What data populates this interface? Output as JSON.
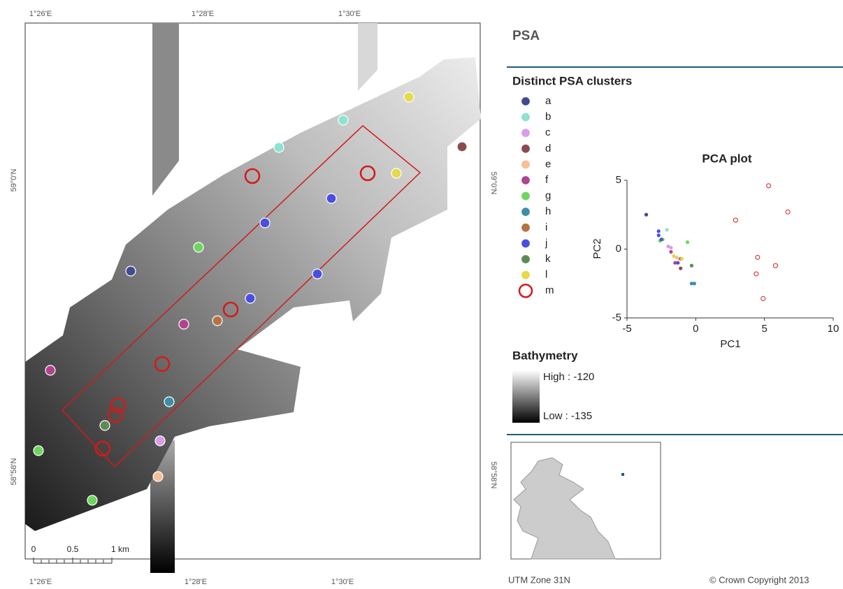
{
  "title": "PSA",
  "map": {
    "lon_labels": [
      "1°26'E",
      "1°28'E",
      "1°30'E"
    ],
    "lat_labels": [
      "59°0'N",
      "58°58'N"
    ],
    "scale_labels": [
      "0",
      "0.5",
      "1 km"
    ]
  },
  "legend": {
    "title": "Distinct PSA clusters"
  },
  "bathymetry": {
    "title": "Bathymetry",
    "high": "High : -120",
    "low": "Low : -135"
  },
  "footer": {
    "projection": "UTM Zone 31N",
    "copyright": "© Crown Copyright 2013"
  },
  "chart_data": {
    "type": "scatter",
    "title": "PCA plot",
    "xlabel": "PC1",
    "ylabel": "PC2",
    "xlim": [
      -5,
      10
    ],
    "ylim": [
      -5,
      5
    ],
    "xticks": [
      -5,
      0,
      5,
      10
    ],
    "yticks": [
      -5,
      0,
      5
    ],
    "series": [
      {
        "name": "a",
        "color": "#414b93",
        "x": [
          -3.6
        ],
        "y": [
          2.5
        ]
      },
      {
        "name": "b",
        "color": "#8be3d0",
        "x": [
          -2.1
        ],
        "y": [
          1.4
        ]
      },
      {
        "name": "c",
        "color": "#d99de8",
        "x": [
          -2.0,
          -1.8
        ],
        "y": [
          0.2,
          0.1
        ]
      },
      {
        "name": "d",
        "color": "#8b4a4b",
        "x": [
          -1.1
        ],
        "y": [
          -1.4
        ]
      },
      {
        "name": "e",
        "color": "#f5bf98",
        "x": [
          -1.4,
          -1.2
        ],
        "y": [
          -0.6,
          -0.7
        ]
      },
      {
        "name": "f",
        "color": "#b0448e",
        "x": [
          -1.5,
          -1.8
        ],
        "y": [
          -1.0,
          -0.2
        ]
      },
      {
        "name": "g",
        "color": "#6ed65e",
        "x": [
          -2.6,
          -2.4,
          -0.6
        ],
        "y": [
          0.6,
          0.7,
          0.5
        ]
      },
      {
        "name": "h",
        "color": "#3f8ea8",
        "x": [
          -0.3,
          -0.1
        ],
        "y": [
          -2.5,
          -2.5
        ]
      },
      {
        "name": "i",
        "color": "#b57341",
        "x": [
          -1.1
        ],
        "y": [
          -0.7
        ]
      },
      {
        "name": "j",
        "color": "#4b4fe0",
        "x": [
          -2.7,
          -2.7,
          -2.5,
          -1.3
        ],
        "y": [
          1.3,
          1.0,
          0.7,
          -1.0
        ]
      },
      {
        "name": "k",
        "color": "#5e8a56",
        "x": [
          -0.3
        ],
        "y": [
          -1.2
        ]
      },
      {
        "name": "l",
        "color": "#e4da4a",
        "x": [
          -1.6,
          -1.0
        ],
        "y": [
          -0.5,
          -0.7
        ]
      },
      {
        "name": "m",
        "color": "#d31a1a",
        "open": true,
        "x": [
          5.3,
          6.7,
          2.9,
          4.5,
          5.8,
          4.4,
          4.9
        ],
        "y": [
          4.6,
          2.7,
          2.1,
          -0.6,
          -1.2,
          -1.8,
          -3.6
        ]
      }
    ]
  }
}
